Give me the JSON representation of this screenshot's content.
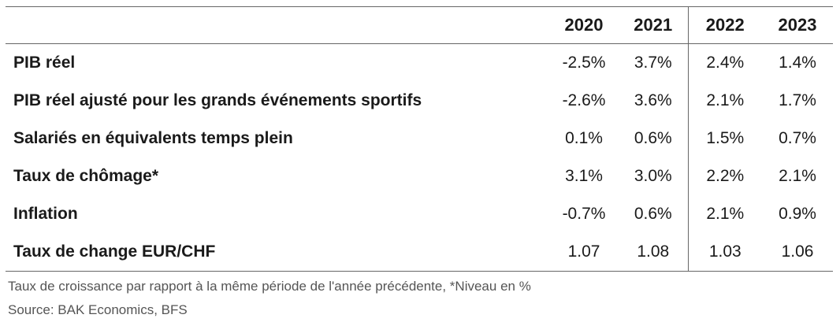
{
  "table": {
    "headers": [
      "",
      "2020",
      "2021",
      "2022",
      "2023"
    ],
    "rows": [
      {
        "label": "PIB réel",
        "values": [
          "-2.5%",
          "3.7%",
          "2.4%",
          "1.4%"
        ]
      },
      {
        "label": "PIB réel ajusté pour les grands événements sportifs",
        "values": [
          "-2.6%",
          "3.6%",
          "2.1%",
          "1.7%"
        ]
      },
      {
        "label": "Salariés en équivalents temps plein",
        "values": [
          "0.1%",
          "0.6%",
          "1.5%",
          "0.7%"
        ]
      },
      {
        "label": "Taux de chômage*",
        "values": [
          "3.1%",
          "3.0%",
          "2.2%",
          "2.1%"
        ]
      },
      {
        "label": "Inflation",
        "values": [
          "-0.7%",
          "0.6%",
          "2.1%",
          "0.9%"
        ]
      },
      {
        "label": "Taux de change EUR/CHF",
        "values": [
          "1.07",
          "1.08",
          "1.03",
          "1.06"
        ]
      }
    ]
  },
  "footnote": "Taux de croissance par rapport à la même période de l'année précédente, *Niveau en %",
  "source": "Source: BAK Economics, BFS"
}
